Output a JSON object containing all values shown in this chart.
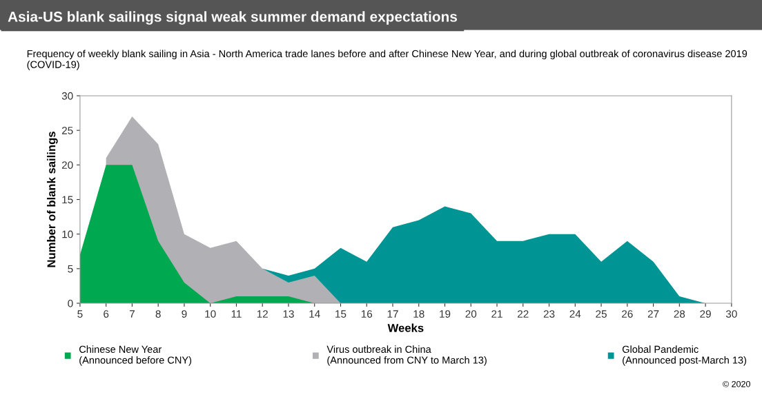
{
  "chart_data": {
    "type": "area",
    "title": "Asia-US blank sailings signal weak summer demand expectations",
    "subtitle": "Frequency of weekly blank sailing in Asia - North America trade lanes before and after Chinese New Year, and during global outbreak of coronavirus disease 2019 (COVID-19)",
    "xlabel": "Weeks",
    "ylabel": "Number of blank sailings",
    "x": [
      5,
      6,
      7,
      8,
      9,
      10,
      11,
      12,
      13,
      14,
      15,
      16,
      17,
      18,
      19,
      20,
      21,
      22,
      23,
      24,
      25,
      26,
      27,
      28,
      29
    ],
    "series": [
      {
        "name": "Global Pandemic\n(Announced post-March 13)",
        "color": "#009595",
        "values": [
          null,
          null,
          null,
          null,
          null,
          null,
          null,
          5,
          4,
          5,
          8,
          6,
          11,
          12,
          14,
          13,
          9,
          9,
          10,
          10,
          6,
          9,
          6,
          1,
          0
        ]
      },
      {
        "name": "Virus outbreak in China\n(Announced from CNY to March 13)",
        "color": "#b1b1b5",
        "values": [
          null,
          21,
          27,
          23,
          10,
          8,
          9,
          5,
          3,
          4,
          0,
          null,
          null,
          null,
          null,
          null,
          null,
          null,
          null,
          null,
          null,
          null,
          null,
          null,
          null
        ]
      },
      {
        "name": "Chinese New Year\n(Announced before CNY)",
        "color": "#00a850",
        "values": [
          7,
          20,
          20,
          9,
          3,
          0,
          1,
          1,
          1,
          0,
          null,
          null,
          null,
          null,
          null,
          null,
          null,
          null,
          null,
          null,
          null,
          null,
          null,
          null,
          null
        ]
      }
    ],
    "xlim": [
      5,
      30
    ],
    "xticks": [
      5,
      6,
      7,
      8,
      9,
      10,
      11,
      12,
      13,
      14,
      15,
      16,
      17,
      18,
      19,
      20,
      21,
      22,
      23,
      24,
      25,
      26,
      27,
      28,
      29,
      30
    ],
    "ylim": [
      0,
      30
    ],
    "yticks": [
      0,
      5,
      10,
      15,
      20,
      25,
      30
    ],
    "grid": false,
    "legend": "bottom",
    "annotations": [
      "© 2020"
    ]
  }
}
